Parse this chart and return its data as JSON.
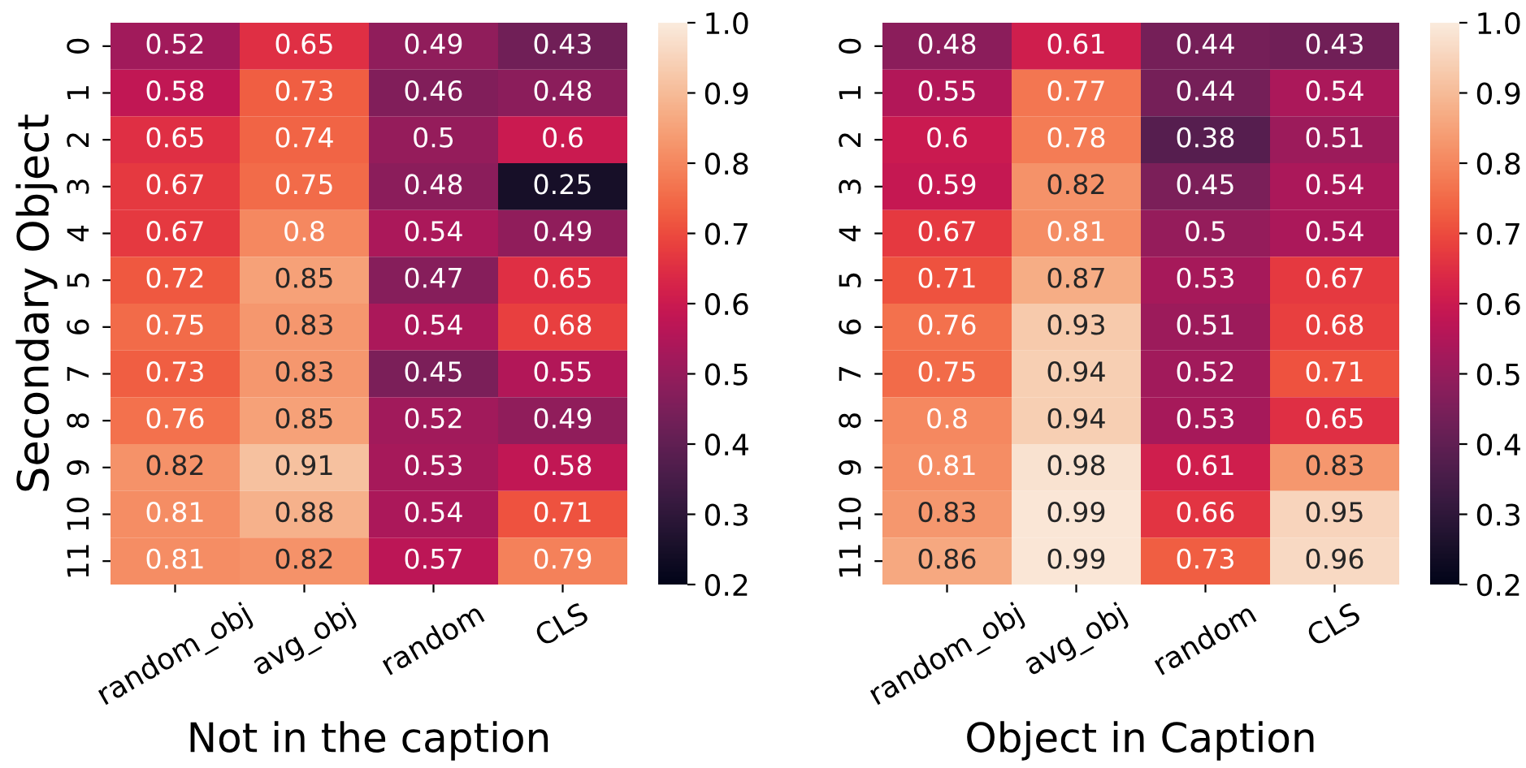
{
  "chart_data": [
    {
      "type": "heatmap",
      "xlabel": "Not in the caption",
      "ylabel": "Secondary Object",
      "categories": [
        "random_obj",
        "avg_obj",
        "random",
        "CLS"
      ],
      "y_categories": [
        "0",
        "1",
        "2",
        "3",
        "4",
        "5",
        "6",
        "7",
        "8",
        "9",
        "10",
        "11"
      ],
      "cells": [
        [
          0.52,
          0.65,
          0.49,
          0.43
        ],
        [
          0.58,
          0.73,
          0.46,
          0.48
        ],
        [
          0.65,
          0.74,
          0.5,
          0.6
        ],
        [
          0.67,
          0.75,
          0.48,
          0.25
        ],
        [
          0.67,
          0.8,
          0.54,
          0.49
        ],
        [
          0.72,
          0.85,
          0.47,
          0.65
        ],
        [
          0.75,
          0.83,
          0.54,
          0.68
        ],
        [
          0.73,
          0.83,
          0.45,
          0.55
        ],
        [
          0.76,
          0.85,
          0.52,
          0.49
        ],
        [
          0.82,
          0.91,
          0.53,
          0.58
        ],
        [
          0.81,
          0.88,
          0.54,
          0.71
        ],
        [
          0.81,
          0.82,
          0.57,
          0.79
        ]
      ],
      "clim": [
        0.2,
        1.0
      ],
      "cticks": [
        0.2,
        0.3,
        0.4,
        0.5,
        0.6,
        0.7,
        0.8,
        0.9,
        {
          "value": 1,
          "label": "1.0"
        }
      ],
      "data_labels": true
    },
    {
      "type": "heatmap",
      "xlabel": "Object in Caption",
      "categories": [
        "random_obj",
        "avg_obj",
        "random",
        "CLS"
      ],
      "y_categories": [
        "0",
        "1",
        "2",
        "3",
        "4",
        "5",
        "6",
        "7",
        "8",
        "9",
        "10",
        "11"
      ],
      "cells": [
        [
          0.48,
          0.61,
          0.44,
          0.43
        ],
        [
          0.55,
          0.77,
          0.44,
          0.54
        ],
        [
          0.6,
          0.78,
          0.38,
          0.51
        ],
        [
          0.59,
          0.82,
          0.45,
          0.54
        ],
        [
          0.67,
          0.81,
          0.5,
          0.54
        ],
        [
          0.71,
          0.87,
          0.53,
          0.67
        ],
        [
          0.76,
          0.93,
          0.51,
          0.68
        ],
        [
          0.75,
          0.94,
          0.52,
          0.71
        ],
        [
          0.8,
          0.94,
          0.53,
          0.65
        ],
        [
          0.81,
          0.98,
          0.61,
          0.83
        ],
        [
          0.83,
          0.99,
          0.66,
          0.95
        ],
        [
          0.86,
          0.99,
          0.73,
          0.96
        ]
      ],
      "clim": [
        0.2,
        1.0
      ],
      "cticks": [
        0.2,
        0.3,
        0.4,
        0.5,
        0.6,
        0.7,
        0.8,
        0.9,
        {
          "value": 1,
          "label": "1.0"
        }
      ],
      "data_labels": true
    }
  ]
}
